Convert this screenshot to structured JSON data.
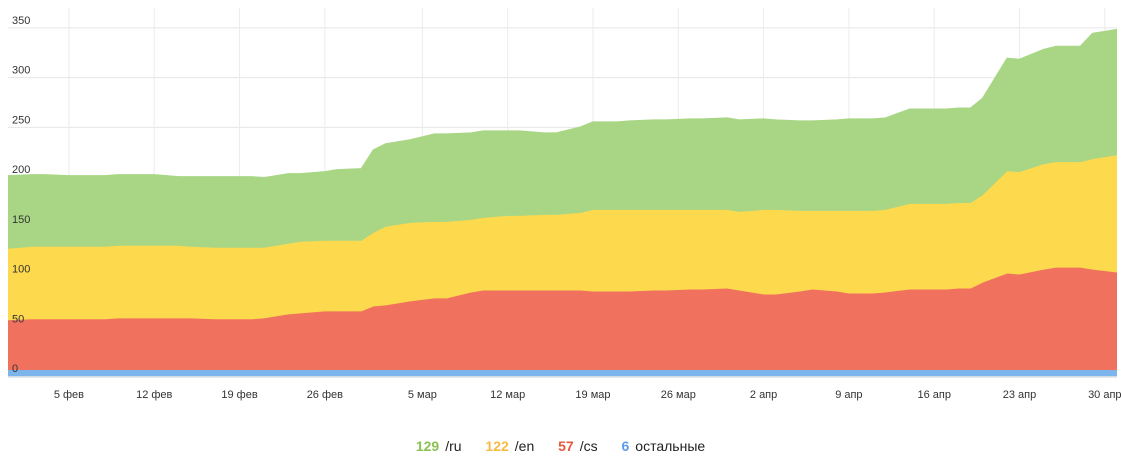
{
  "chart_data": {
    "type": "area",
    "stacked": true,
    "xlabel": "",
    "ylabel": "",
    "ylim": [
      0,
      370
    ],
    "yticks": [
      0,
      50,
      100,
      150,
      200,
      250,
      300,
      350
    ],
    "grid": "horizontal and vertical",
    "x": [
      "2024-01-31",
      "2024-02-02",
      "2024-02-03",
      "2024-02-05",
      "2024-02-06",
      "2024-02-08",
      "2024-02-09",
      "2024-02-11",
      "2024-02-12",
      "2024-02-14",
      "2024-02-15",
      "2024-02-17",
      "2024-02-18",
      "2024-02-20",
      "2024-02-21",
      "2024-02-23",
      "2024-02-24",
      "2024-02-26",
      "2024-02-27",
      "2024-02-29",
      "2024-03-01",
      "2024-03-02",
      "2024-03-04",
      "2024-03-06",
      "2024-03-07",
      "2024-03-09",
      "2024-03-10",
      "2024-03-12",
      "2024-03-13",
      "2024-03-15",
      "2024-03-16",
      "2024-03-18",
      "2024-03-19",
      "2024-03-21",
      "2024-03-22",
      "2024-03-24",
      "2024-03-25",
      "2024-03-27",
      "2024-03-28",
      "2024-03-30",
      "2024-03-31",
      "2024-04-02",
      "2024-04-03",
      "2024-04-05",
      "2024-04-06",
      "2024-04-08",
      "2024-04-09",
      "2024-04-11",
      "2024-04-12",
      "2024-04-14",
      "2024-04-15",
      "2024-04-17",
      "2024-04-18",
      "2024-04-19",
      "2024-04-20",
      "2024-04-22",
      "2024-04-23",
      "2024-04-25",
      "2024-04-26",
      "2024-04-28",
      "2024-04-29",
      "2024-05-01"
    ],
    "xticks": [
      {
        "date": "2024-02-05",
        "label": "5 фев"
      },
      {
        "date": "2024-02-12",
        "label": "12 фев"
      },
      {
        "date": "2024-02-19",
        "label": "19 фев"
      },
      {
        "date": "2024-02-26",
        "label": "26 фев"
      },
      {
        "date": "2024-03-05",
        "label": "5 мар"
      },
      {
        "date": "2024-03-12",
        "label": "12 мар"
      },
      {
        "date": "2024-03-19",
        "label": "19 мар"
      },
      {
        "date": "2024-03-26",
        "label": "26 мар"
      },
      {
        "date": "2024-04-02",
        "label": "2 апр"
      },
      {
        "date": "2024-04-09",
        "label": "9 апр"
      },
      {
        "date": "2024-04-16",
        "label": "16 апр"
      },
      {
        "date": "2024-04-23",
        "label": "23 апр"
      },
      {
        "date": "2024-04-30",
        "label": "30 апр"
      }
    ],
    "series": [
      {
        "name": "остальные",
        "color": "#7cb5ec",
        "values": [
          6,
          6,
          6,
          6,
          6,
          6,
          6,
          6,
          6,
          6,
          6,
          6,
          6,
          6,
          6,
          6,
          6,
          6,
          6,
          6,
          6,
          6,
          6,
          6,
          6,
          6,
          6,
          6,
          6,
          6,
          6,
          6,
          6,
          6,
          6,
          6,
          6,
          6,
          6,
          6,
          6,
          6,
          6,
          6,
          6,
          6,
          6,
          6,
          6,
          6,
          6,
          6,
          6,
          6,
          6,
          6,
          6,
          6,
          6,
          6,
          6,
          6
        ]
      },
      {
        "name": "/cs",
        "color": "#f0725e",
        "values": [
          50,
          51,
          51,
          51,
          51,
          51,
          52,
          52,
          52,
          52,
          52,
          51,
          51,
          51,
          52,
          56,
          57,
          59,
          59,
          59,
          64,
          65,
          69,
          72,
          72,
          78,
          80,
          80,
          80,
          80,
          80,
          80,
          79,
          79,
          79,
          80,
          80,
          81,
          81,
          82,
          80,
          76,
          76,
          79,
          81,
          79,
          77,
          77,
          78,
          81,
          81,
          81,
          82,
          82,
          88,
          97,
          96,
          101,
          103,
          103,
          101,
          98
        ]
      },
      {
        "name": "/en",
        "color": "#fdd94e",
        "values": [
          72,
          73,
          73,
          73,
          73,
          73,
          73,
          73,
          73,
          73,
          72,
          72,
          72,
          72,
          71,
          71,
          72,
          71,
          71,
          71,
          74,
          79,
          79,
          77,
          77,
          73,
          73,
          75,
          75,
          76,
          76,
          78,
          82,
          82,
          82,
          81,
          81,
          80,
          80,
          79,
          79,
          85,
          85,
          81,
          79,
          81,
          83,
          83,
          83,
          86,
          86,
          86,
          86,
          86,
          88,
          103,
          103,
          106,
          106,
          106,
          111,
          118
        ]
      },
      {
        "name": "/ru",
        "color": "#a9d685",
        "values": [
          73,
          72,
          72,
          71,
          71,
          71,
          71,
          71,
          71,
          69,
          70,
          71,
          71,
          71,
          70,
          70,
          68,
          69,
          71,
          72,
          83,
          83,
          83,
          88,
          88,
          87,
          87,
          85,
          85,
          82,
          82,
          86,
          88,
          88,
          89,
          90,
          90,
          91,
          91,
          92,
          92,
          91,
          90,
          90,
          90,
          91,
          92,
          92,
          92,
          95,
          95,
          95,
          95,
          95,
          97,
          113,
          113,
          115,
          116,
          116,
          126,
          126
        ]
      }
    ]
  },
  "legend": [
    {
      "value": "129",
      "label": "/ru",
      "color": "#8cc152"
    },
    {
      "value": "122",
      "label": "/en",
      "color": "#f6bb42"
    },
    {
      "value": "57",
      "label": "/cs",
      "color": "#e9573f"
    },
    {
      "value": "6",
      "label": "остальные",
      "color": "#5d9cec"
    }
  ]
}
